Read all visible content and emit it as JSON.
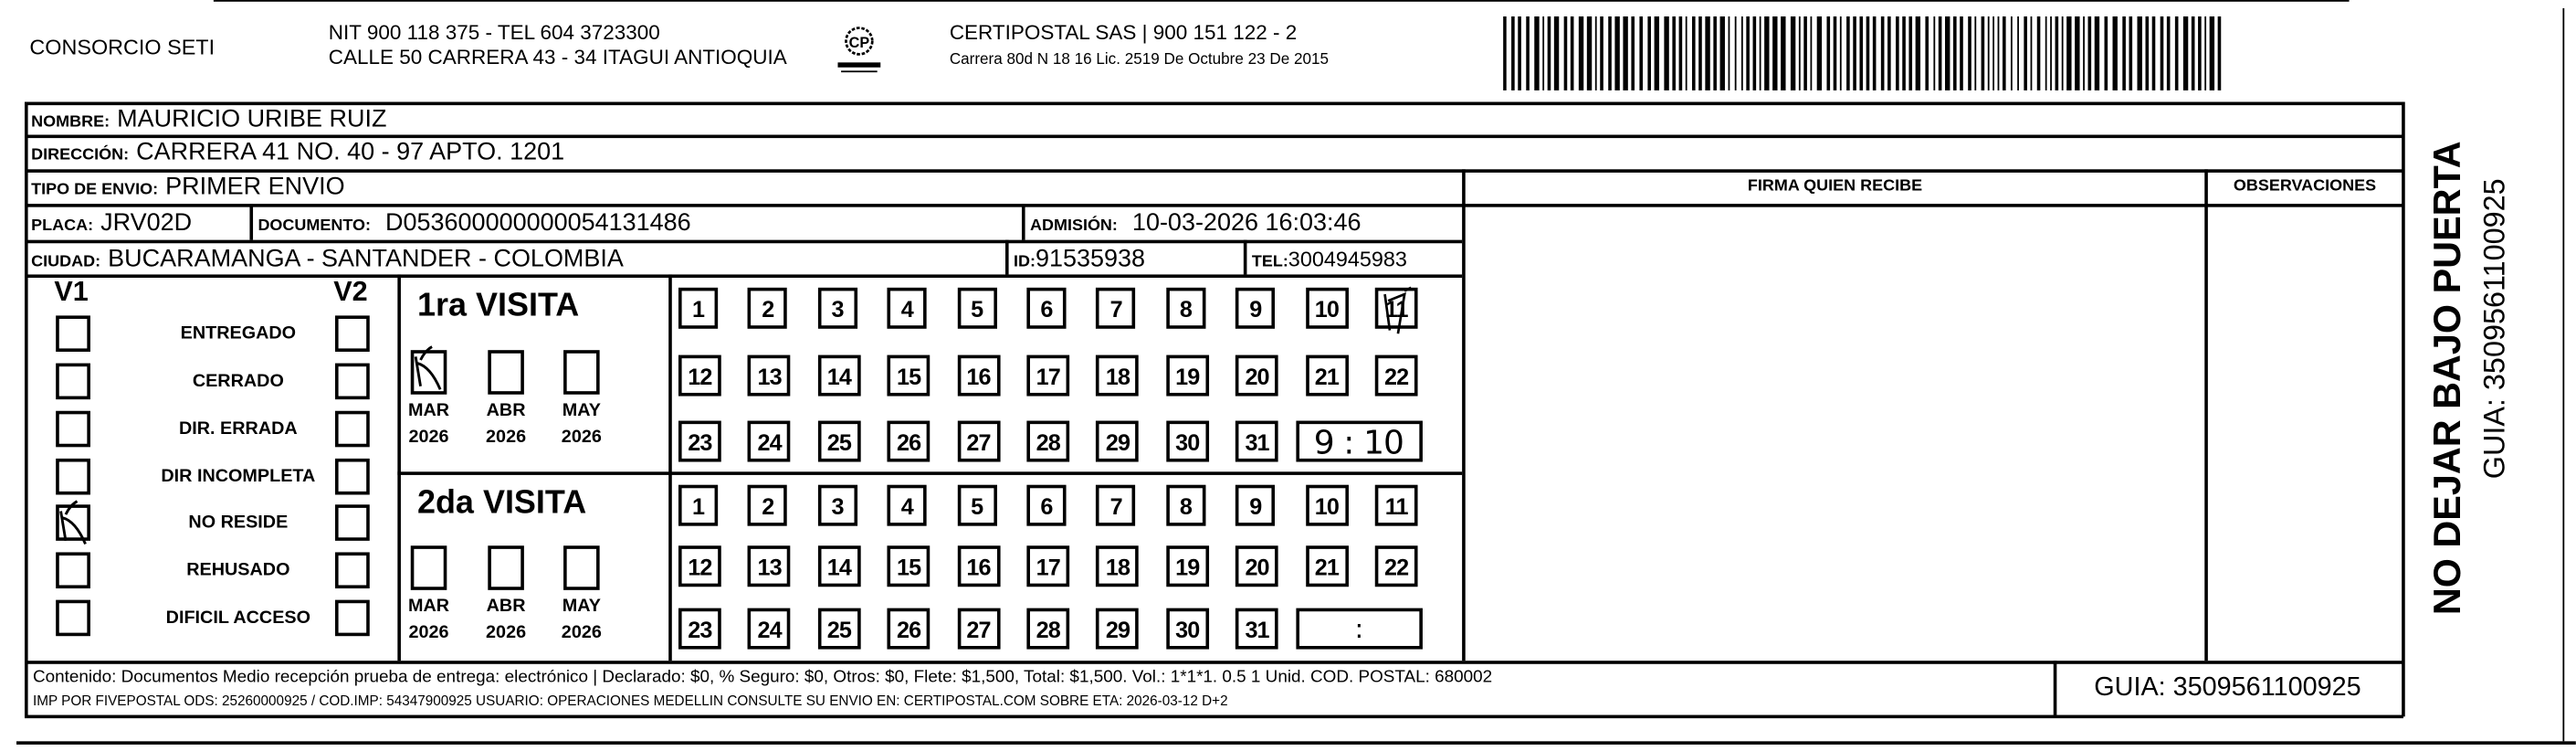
{
  "header": {
    "company": "CONSORCIO SETI",
    "nit_line": "NIT 900 118 375 - TEL 604 3723300",
    "address_line": "CALLE 50 CARRERA 43 - 34 ITAGUI ANTIOQUIA",
    "logo_text": "CERTIPOSTAL",
    "certi_line1": "CERTIPOSTAL SAS | 900 151 122 - 2",
    "certi_line2": "Carrera 80d N 18 16  Lic. 2519 De Octubre 23 De 2015",
    "barcode_icon": "barcode"
  },
  "recipient": {
    "nombre_label": "NOMBRE:",
    "nombre": "MAURICIO URIBE RUIZ",
    "direccion_label": "DIRECCIÓN:",
    "direccion": "CARRERA 41 NO. 40 - 97 APTO. 1201",
    "tipo_label": "TIPO DE ENVIO:",
    "tipo": "PRIMER ENVIO",
    "placa_label": "PLACA:",
    "placa": "JRV02D",
    "documento_label": "DOCUMENTO:",
    "documento": "D053600000000054131486",
    "admision_label": "ADMISIÓN:",
    "admision": "10-03-2026 16:03:46",
    "ciudad_label": "CIUDAD:",
    "ciudad": "BUCARAMANGA - SANTANDER - COLOMBIA",
    "id_label": "ID:",
    "id": "91535938",
    "tel_label": "TEL:",
    "tel": "3004945983"
  },
  "columns": {
    "firma": "FIRMA QUIEN RECIBE",
    "observaciones": "OBSERVACIONES"
  },
  "status": {
    "v1_label": "V1",
    "v2_label": "V2",
    "items": [
      {
        "label": "ENTREGADO",
        "v1": false,
        "v2": false
      },
      {
        "label": "CERRADO",
        "v1": false,
        "v2": false
      },
      {
        "label": "DIR. ERRADA",
        "v1": false,
        "v2": false
      },
      {
        "label": "DIR INCOMPLETA",
        "v1": false,
        "v2": false
      },
      {
        "label": "NO RESIDE",
        "v1": true,
        "v2": false
      },
      {
        "label": "REHUSADO",
        "v1": false,
        "v2": false
      },
      {
        "label": "DIFICIL ACCESO",
        "v1": false,
        "v2": false
      }
    ]
  },
  "visits": [
    {
      "title": "1ra VISITA",
      "months": [
        {
          "m": "MAR",
          "y": "2026",
          "checked": true
        },
        {
          "m": "ABR",
          "y": "2026",
          "checked": false
        },
        {
          "m": "MAY",
          "y": "2026",
          "checked": false
        }
      ],
      "marked_day": 11,
      "time": "9 : 10"
    },
    {
      "title": "2da VISITA",
      "months": [
        {
          "m": "MAR",
          "y": "2026",
          "checked": false
        },
        {
          "m": "ABR",
          "y": "2026",
          "checked": false
        },
        {
          "m": "MAY",
          "y": "2026",
          "checked": false
        }
      ],
      "marked_day": null,
      "time": ":"
    }
  ],
  "footer": {
    "line1": "Contenido: Documentos Medio recepción prueba de entrega: electrónico | Declarado: $0, % Seguro: $0, Otros: $0, Flete: $1,500, Total: $1,500. Vol.: 1*1*1. 0.5  1 Unid. COD. POSTAL: 680002",
    "line2": "IMP POR FIVEPOSTAL ODS: 25260000925 / COD.IMP: 54347900925 USUARIO: OPERACIONES MEDELLIN CONSULTE SU ENVIO EN: CERTIPOSTAL.COM SOBRE ETA: 2026-03-12 D+2",
    "guia": "GUIA: 3509561100925"
  },
  "side": {
    "warning": "NO DEJAR BAJO PUERTA",
    "guia": "GUIA: 3509561100925"
  }
}
